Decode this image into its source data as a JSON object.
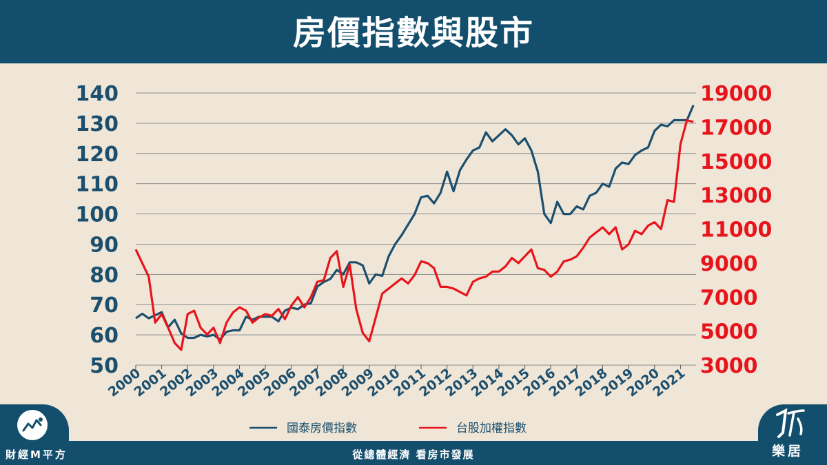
{
  "header": {
    "title": "房價指數與股市"
  },
  "footer": {
    "left_brand": "財經M平方",
    "center_text": "從總體經濟 看房市發展",
    "right_brand": "樂居"
  },
  "colors": {
    "house": "#1c4f6d",
    "stock": "#e8141b",
    "band": "#134f6d",
    "background": "#efe6d8"
  },
  "chart_data": {
    "type": "line",
    "title": "房價指數與股市",
    "categories": [
      "2000",
      "2001",
      "2002",
      "2003",
      "2004",
      "2005",
      "2006",
      "2007",
      "2008",
      "2009",
      "2010",
      "2011",
      "2012",
      "2013",
      "2014",
      "2015",
      "2016",
      "2017",
      "2018",
      "2019",
      "2020",
      "2021"
    ],
    "left_axis": {
      "ylim": [
        50,
        140
      ],
      "ticks": [
        140,
        130,
        120,
        110,
        100,
        90,
        80,
        70,
        60,
        50
      ]
    },
    "right_axis": {
      "ylim": [
        3000,
        19000
      ],
      "ticks": [
        19000,
        17000,
        15000,
        13000,
        11000,
        9000,
        7000,
        5000,
        3000
      ]
    },
    "legend": "bottom",
    "grid": true,
    "series": [
      {
        "name": "國泰房價指數",
        "axis": "left",
        "x": [
          2000,
          2000.25,
          2000.5,
          2000.75,
          2001,
          2001.25,
          2001.5,
          2001.75,
          2002,
          2002.25,
          2002.5,
          2002.75,
          2003,
          2003.25,
          2003.5,
          2003.75,
          2004,
          2004.25,
          2004.5,
          2004.75,
          2005,
          2005.25,
          2005.5,
          2005.75,
          2006,
          2006.25,
          2006.5,
          2006.75,
          2007,
          2007.25,
          2007.5,
          2007.75,
          2008,
          2008.25,
          2008.5,
          2008.75,
          2009,
          2009.25,
          2009.5,
          2009.75,
          2010,
          2010.25,
          2010.5,
          2010.75,
          2011,
          2011.25,
          2011.5,
          2011.75,
          2012,
          2012.25,
          2012.5,
          2012.75,
          2013,
          2013.25,
          2013.5,
          2013.75,
          2014,
          2014.25,
          2014.5,
          2014.75,
          2015,
          2015.25,
          2015.5,
          2015.75,
          2016,
          2016.25,
          2016.5,
          2016.75,
          2017,
          2017.25,
          2017.5,
          2017.75,
          2018,
          2018.25,
          2018.5,
          2018.75,
          2019,
          2019.25,
          2019.5,
          2019.75,
          2020,
          2020.25,
          2020.5,
          2020.75,
          2021,
          2021.25,
          2021.5
        ],
        "values": [
          65.5,
          67,
          65.5,
          66.5,
          67.5,
          62.5,
          65,
          60.5,
          59,
          59,
          60,
          59.5,
          60,
          58.5,
          61,
          61.5,
          61.5,
          66,
          65,
          66,
          66,
          66,
          64.5,
          68,
          69,
          68.5,
          70,
          70.5,
          76,
          77.5,
          78.5,
          81.5,
          80,
          84,
          84,
          83,
          77,
          80,
          79.5,
          86,
          90,
          93,
          96.5,
          100,
          105.5,
          106,
          103.5,
          107,
          114,
          107.5,
          114.5,
          118,
          121,
          122,
          127,
          124,
          126,
          128,
          126,
          123,
          125,
          121,
          114,
          100,
          97,
          104,
          100,
          100,
          102.5,
          101.5,
          106,
          107,
          110,
          109,
          115,
          117,
          116.5,
          119.5,
          121,
          122,
          127.5,
          129.5,
          129,
          131,
          131,
          131,
          136
        ]
      },
      {
        "name": "台股加權指數",
        "axis": "right",
        "x": [
          2000,
          2000.25,
          2000.5,
          2000.75,
          2001,
          2001.25,
          2001.5,
          2001.75,
          2002,
          2002.25,
          2002.5,
          2002.75,
          2003,
          2003.25,
          2003.5,
          2003.75,
          2004,
          2004.25,
          2004.5,
          2004.75,
          2005,
          2005.25,
          2005.5,
          2005.75,
          2006,
          2006.25,
          2006.5,
          2006.75,
          2007,
          2007.25,
          2007.5,
          2007.75,
          2008,
          2008.25,
          2008.5,
          2008.75,
          2009,
          2009.25,
          2009.5,
          2009.75,
          2010,
          2010.25,
          2010.5,
          2010.75,
          2011,
          2011.25,
          2011.5,
          2011.75,
          2012,
          2012.25,
          2012.5,
          2012.75,
          2013,
          2013.25,
          2013.5,
          2013.75,
          2014,
          2014.25,
          2014.5,
          2014.75,
          2015,
          2015.25,
          2015.5,
          2015.75,
          2016,
          2016.25,
          2016.5,
          2016.75,
          2017,
          2017.25,
          2017.5,
          2017.75,
          2018,
          2018.25,
          2018.5,
          2018.75,
          2019,
          2019.25,
          2019.5,
          2019.75,
          2020,
          2020.25,
          2020.5,
          2020.75,
          2021,
          2021.25,
          2021.5
        ],
        "values": [
          9800,
          9000,
          8200,
          5500,
          6000,
          5200,
          4300,
          3900,
          6000,
          6200,
          5200,
          4800,
          5200,
          4300,
          5500,
          6100,
          6400,
          6200,
          5500,
          5800,
          6000,
          5900,
          6300,
          5700,
          6500,
          7000,
          6400,
          7000,
          7900,
          8000,
          9300,
          9700,
          7600,
          8900,
          6300,
          4900,
          4400,
          5800,
          7200,
          7500,
          7800,
          8100,
          7800,
          8300,
          9100,
          9000,
          8700,
          7600,
          7600,
          7500,
          7300,
          7100,
          7900,
          8100,
          8200,
          8500,
          8500,
          8800,
          9300,
          9000,
          9400,
          9800,
          8700,
          8600,
          8200,
          8500,
          9100,
          9200,
          9400,
          9900,
          10500,
          10800,
          11100,
          10700,
          11100,
          9800,
          10100,
          10900,
          10700,
          11200,
          11400,
          11000,
          12700,
          12600,
          16000,
          17400,
          17300
        ]
      }
    ]
  }
}
